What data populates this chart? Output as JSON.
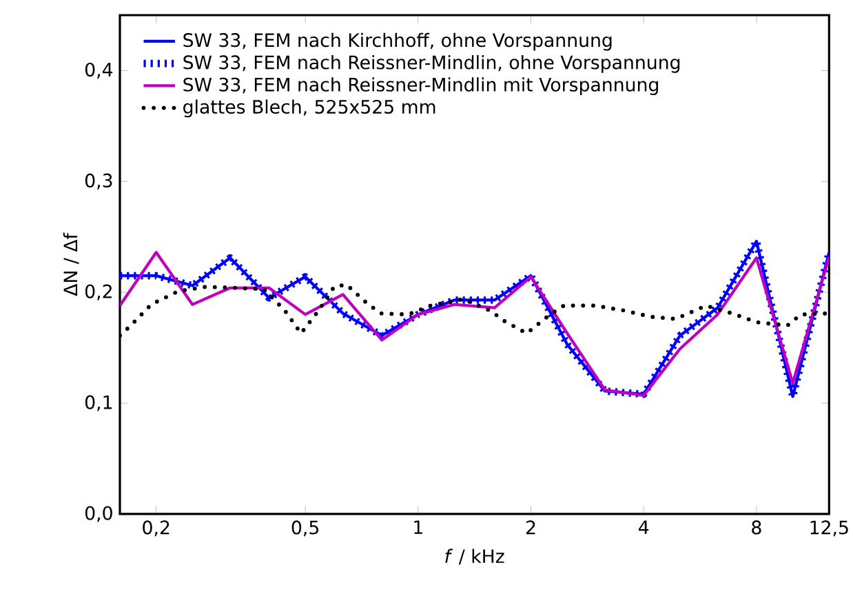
{
  "chart_data": {
    "type": "line",
    "xlabel": "*f* / kHz",
    "ylabel": "ΔN / Δf",
    "log": "x",
    "xlim": [
      0.16,
      12.5
    ],
    "ylim": [
      0,
      0.45
    ],
    "xticks": [
      {
        "value": 0.2,
        "label": "0,2"
      },
      {
        "value": 0.5,
        "label": "0,5"
      },
      1,
      2,
      4,
      8,
      {
        "value": 12.5,
        "label": "12,5"
      }
    ],
    "yticks": [
      {
        "value": 0,
        "label": "0,0"
      },
      {
        "value": 0.1,
        "label": "0,1"
      },
      {
        "value": 0.2,
        "label": "0,2"
      },
      {
        "value": 0.3,
        "label": "0,3"
      },
      {
        "value": 0.4,
        "label": "0,4"
      }
    ],
    "grid": false,
    "legend": "top left",
    "marker": "none",
    "series": [
      {
        "name": "SW 33, FEM nach Kirchhoff, ohne Vorspannung",
        "color": "#0000ff",
        "line_style": "solid",
        "x": [
          0.16,
          0.2,
          0.25,
          0.315,
          0.4,
          0.5,
          0.63,
          0.8,
          1,
          1.25,
          1.6,
          2,
          2.5,
          3.15,
          4,
          5,
          6.3,
          8,
          10,
          12.5
        ],
        "values": [
          0.215,
          0.215,
          0.206,
          0.231,
          0.195,
          0.214,
          0.181,
          0.161,
          0.18,
          0.193,
          0.193,
          0.215,
          0.153,
          0.111,
          0.108,
          0.161,
          0.186,
          0.246,
          0.106,
          0.236
        ]
      },
      {
        "name": "SW 33, FEM nach Reissner-Mindlin, ohne Vorspannung",
        "color": "#0000ff",
        "line_style": "dashed",
        "x": [
          0.16,
          0.2,
          0.25,
          0.315,
          0.4,
          0.5,
          0.63,
          0.8,
          1,
          1.25,
          1.6,
          2,
          2.5,
          3.15,
          4,
          5,
          6.3,
          8,
          10,
          12.5
        ],
        "values": [
          0.215,
          0.215,
          0.206,
          0.231,
          0.195,
          0.214,
          0.181,
          0.161,
          0.18,
          0.193,
          0.193,
          0.215,
          0.153,
          0.111,
          0.108,
          0.161,
          0.186,
          0.246,
          0.106,
          0.236
        ]
      },
      {
        "name": "SW 33, FEM nach Reissner-Mindlin mit Vorspannung",
        "color": "#c000c0",
        "line_style": "solid",
        "x": [
          0.16,
          0.2,
          0.25,
          0.315,
          0.4,
          0.5,
          0.63,
          0.8,
          1,
          1.25,
          1.6,
          2,
          2.5,
          3.15,
          4,
          5,
          6.3,
          8,
          10,
          12.5
        ],
        "values": [
          0.188,
          0.236,
          0.189,
          0.204,
          0.204,
          0.18,
          0.198,
          0.157,
          0.18,
          0.189,
          0.186,
          0.214,
          0.163,
          0.112,
          0.107,
          0.149,
          0.18,
          0.231,
          0.118,
          0.232
        ]
      },
      {
        "name": "glattes Blech, 525x525 mm",
        "color": "#000000",
        "line_style": "dotted",
        "x": [
          0.16,
          0.171,
          0.194,
          0.229,
          0.272,
          0.322,
          0.387,
          0.44,
          0.487,
          0.544,
          0.597,
          0.644,
          0.731,
          0.796,
          0.942,
          1.08,
          1.32,
          1.57,
          1.68,
          1.95,
          2.25,
          2.45,
          2.96,
          3.5,
          4.17,
          4.87,
          5.87,
          6.89,
          8.02,
          9.67,
          10.5,
          12.5
        ],
        "values": [
          0.161,
          0.17,
          0.189,
          0.201,
          0.205,
          0.204,
          0.203,
          0.184,
          0.163,
          0.184,
          0.205,
          0.207,
          0.19,
          0.181,
          0.18,
          0.188,
          0.194,
          0.183,
          0.175,
          0.163,
          0.18,
          0.188,
          0.188,
          0.184,
          0.178,
          0.176,
          0.188,
          0.181,
          0.173,
          0.17,
          0.18,
          0.181
        ]
      }
    ]
  }
}
